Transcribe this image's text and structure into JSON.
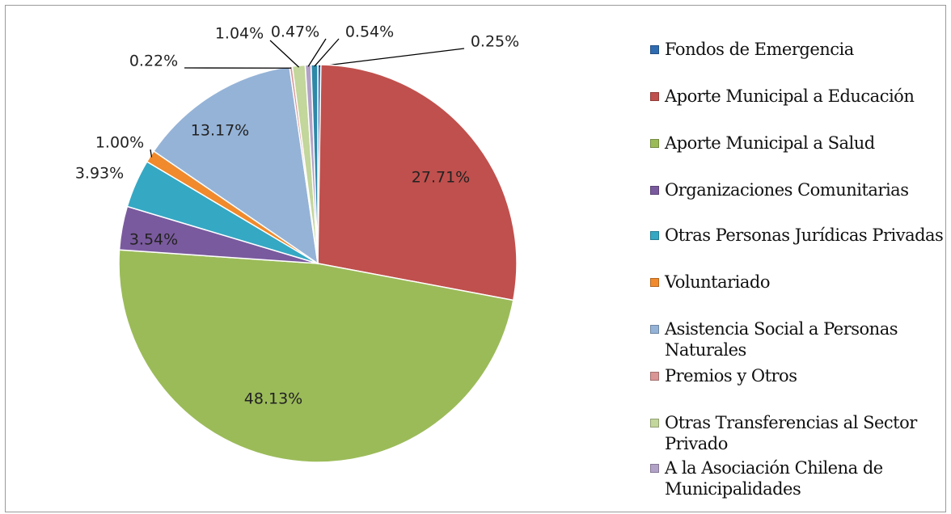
{
  "chart_data": {
    "type": "pie",
    "categories": [
      "Fondos de Emergencia",
      "Aporte Municipal a Educación",
      "Aporte Municipal a Salud",
      "Organizaciones Comunitarias",
      "Otras Personas Jurídicas Privadas",
      "Voluntariado",
      "Asistencia Social a Personas Naturales",
      "Premios y Otros",
      "Otras Transferencias al Sector Privado",
      "A la Asociación Chilena de Municipalidades",
      null
    ],
    "values": [
      0.25,
      27.71,
      48.13,
      3.54,
      3.93,
      1.0,
      13.17,
      0.22,
      1.04,
      0.47,
      0.54
    ],
    "value_labels": [
      "0.25%",
      "27.71%",
      "48.13%",
      "3.54%",
      "3.93%",
      "1.00%",
      "13.17%",
      "0.22%",
      "1.04%",
      "0.47%",
      "0.54%"
    ],
    "colors": [
      "#2F6BB0",
      "#C0504D",
      "#9BBB59",
      "#7A5A9E",
      "#35A8C4",
      "#F08A2C",
      "#95B3D7",
      "#D99694",
      "#C3D69B",
      "#B3A2C7",
      "#2E88A8"
    ]
  }
}
